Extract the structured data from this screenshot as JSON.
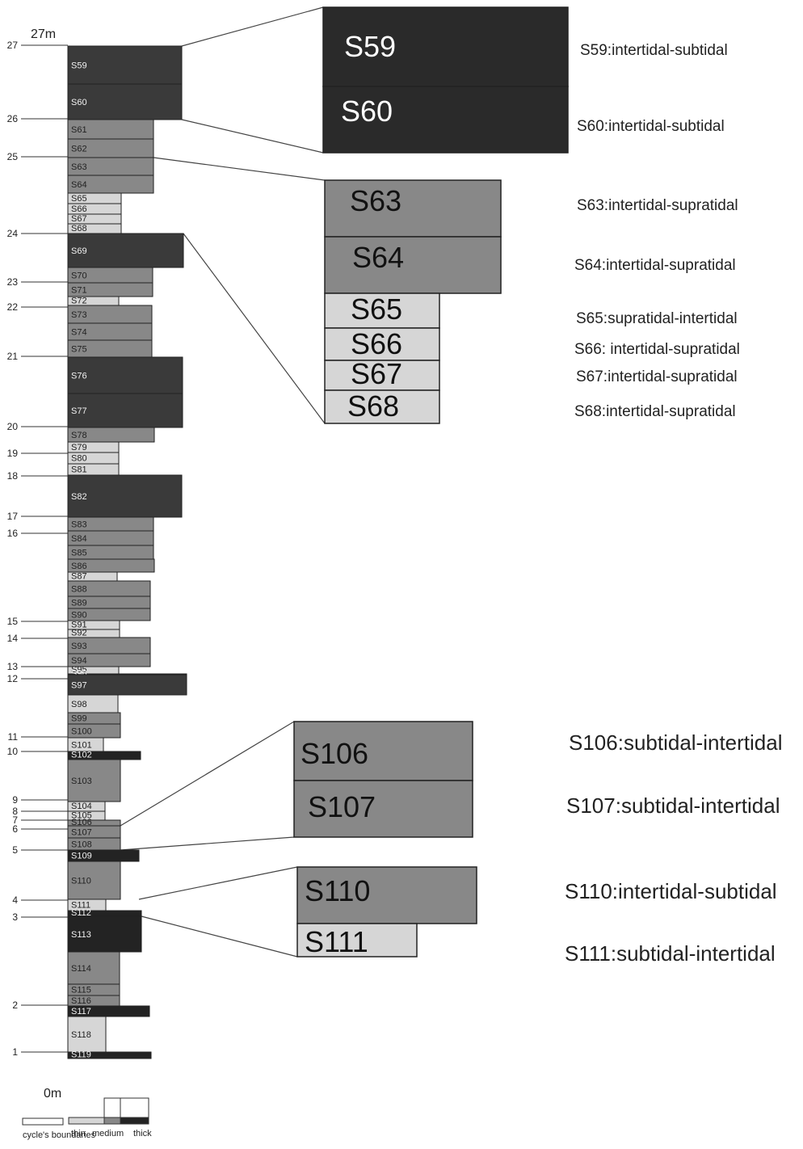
{
  "axis": {
    "top_label": "27m",
    "bottom_label": "0m",
    "ticks": [
      "27",
      "26",
      "25",
      "24",
      "23",
      "22",
      "21",
      "20",
      "19",
      "18",
      "17",
      "16",
      "15",
      "14",
      "13",
      "12",
      "11",
      "10",
      "9",
      "8",
      "7",
      "6",
      "5",
      "4",
      "3",
      "2",
      "1"
    ]
  },
  "colors": {
    "thin": "#d6d6d6",
    "medium": "#888888",
    "thick": "#3a3a3a",
    "thickest": "#232323",
    "zoom_dark": "#2a2a2a",
    "line": "#444444"
  },
  "segments": [
    {
      "label": "S59",
      "thickness": "thick"
    },
    {
      "label": "S60",
      "thickness": "thick"
    },
    {
      "label": "S61",
      "thickness": "medium"
    },
    {
      "label": "S62",
      "thickness": "medium"
    },
    {
      "label": "S63",
      "thickness": "medium"
    },
    {
      "label": "S64",
      "thickness": "medium"
    },
    {
      "label": "S65",
      "thickness": "thin"
    },
    {
      "label": "S66",
      "thickness": "thin"
    },
    {
      "label": "S67",
      "thickness": "thin"
    },
    {
      "label": "S68",
      "thickness": "thin"
    },
    {
      "label": "S69",
      "thickness": "thick"
    },
    {
      "label": "S70",
      "thickness": "medium"
    },
    {
      "label": "S71",
      "thickness": "medium"
    },
    {
      "label": "S72",
      "thickness": "thin"
    },
    {
      "label": "S73",
      "thickness": "medium"
    },
    {
      "label": "S74",
      "thickness": "medium"
    },
    {
      "label": "S75",
      "thickness": "medium"
    },
    {
      "label": "S76",
      "thickness": "thick"
    },
    {
      "label": "S77",
      "thickness": "thick"
    },
    {
      "label": "S78",
      "thickness": "medium"
    },
    {
      "label": "S79",
      "thickness": "thin"
    },
    {
      "label": "S80",
      "thickness": "thin"
    },
    {
      "label": "S81",
      "thickness": "thin"
    },
    {
      "label": "S82",
      "thickness": "thick"
    },
    {
      "label": "S83",
      "thickness": "medium"
    },
    {
      "label": "S84",
      "thickness": "medium"
    },
    {
      "label": "S85",
      "thickness": "medium"
    },
    {
      "label": "S86",
      "thickness": "medium"
    },
    {
      "label": "S87",
      "thickness": "thin"
    },
    {
      "label": "S88",
      "thickness": "medium"
    },
    {
      "label": "S89",
      "thickness": "medium"
    },
    {
      "label": "S90",
      "thickness": "medium"
    },
    {
      "label": "S91",
      "thickness": "thin"
    },
    {
      "label": "S92",
      "thickness": "thin"
    },
    {
      "label": "S93",
      "thickness": "medium"
    },
    {
      "label": "S94",
      "thickness": "medium"
    },
    {
      "label": "S95",
      "thickness": "thin"
    },
    {
      "label": "S96",
      "thickness": "thick"
    },
    {
      "label": "S97",
      "thickness": "thick"
    },
    {
      "label": "S98",
      "thickness": "thin"
    },
    {
      "label": "S99",
      "thickness": "medium"
    },
    {
      "label": "S100",
      "thickness": "medium"
    },
    {
      "label": "S101",
      "thickness": "thin"
    },
    {
      "label": "S102",
      "thickness": "thickest"
    },
    {
      "label": "S103",
      "thickness": "medium"
    },
    {
      "label": "S104",
      "thickness": "thin"
    },
    {
      "label": "S105",
      "thickness": "thin"
    },
    {
      "label": "S106",
      "thickness": "medium"
    },
    {
      "label": "S107",
      "thickness": "medium"
    },
    {
      "label": "S108",
      "thickness": "medium"
    },
    {
      "label": "S109",
      "thickness": "thickest"
    },
    {
      "label": "S110",
      "thickness": "medium"
    },
    {
      "label": "S111",
      "thickness": "thin"
    },
    {
      "label": "S112",
      "thickness": "thickest"
    },
    {
      "label": "S113",
      "thickness": "thickest"
    },
    {
      "label": "S114",
      "thickness": "medium"
    },
    {
      "label": "S115",
      "thickness": "medium"
    },
    {
      "label": "S116",
      "thickness": "medium"
    },
    {
      "label": "S117",
      "thickness": "thickest"
    },
    {
      "label": "S118",
      "thickness": "thin"
    },
    {
      "label": "S119",
      "thickness": "thickest"
    }
  ],
  "zooms": [
    {
      "labels": [
        "S59",
        "S60"
      ],
      "descriptions": [
        "S59:intertidal-subtidal",
        "S60:intertidal-subtidal"
      ]
    },
    {
      "labels": [
        "S63",
        "S64",
        "S65",
        "S66",
        "S67",
        "S68"
      ],
      "descriptions": [
        "S63:intertidal-supratidal",
        "S64:intertidal-supratidal",
        "S65:supratidal-intertidal",
        "S66: intertidal-supratidal",
        "S67:intertidal-supratidal",
        "S68:intertidal-supratidal"
      ]
    },
    {
      "labels": [
        "S106",
        "S107"
      ],
      "descriptions": [
        "S106:subtidal-intertidal",
        "S107:subtidal-intertidal"
      ]
    },
    {
      "labels": [
        "S110",
        "S111"
      ],
      "descriptions": [
        "S110:intertidal-subtidal",
        "S111:subtidal-intertidal"
      ]
    }
  ],
  "legend": {
    "boundary_label": "cycle's boundaries",
    "thickness_labels": [
      "thin",
      "medium",
      "thick"
    ]
  }
}
